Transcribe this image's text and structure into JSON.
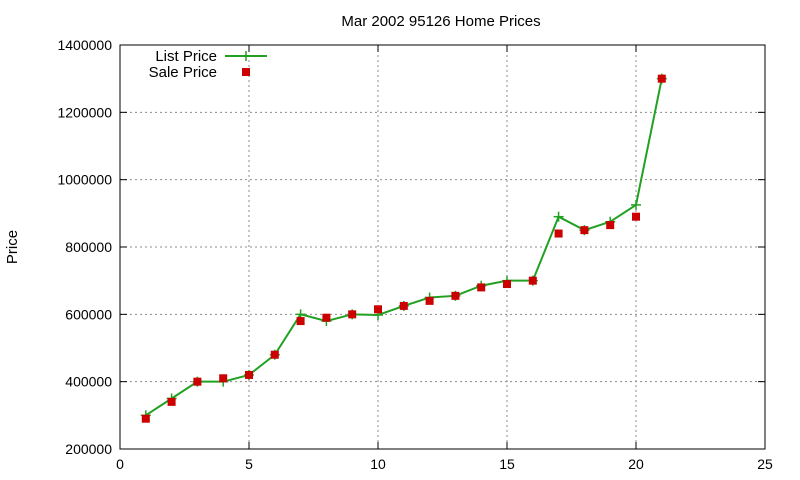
{
  "chart_data": {
    "type": "line",
    "title": "Mar 2002 95126 Home Prices",
    "xlabel": "",
    "ylabel": "Price",
    "xlim": [
      0,
      25
    ],
    "ylim": [
      200000,
      1400000
    ],
    "xticks": [
      0,
      5,
      10,
      15,
      20,
      25
    ],
    "yticks": [
      200000,
      400000,
      600000,
      800000,
      1000000,
      1200000,
      1400000
    ],
    "grid": true,
    "legend": "top-left",
    "series": [
      {
        "name": "List Price",
        "style": "line-plus",
        "color": "#22a022",
        "x": [
          1,
          2,
          3,
          4,
          5,
          6,
          7,
          8,
          9,
          10,
          11,
          12,
          13,
          14,
          15,
          16,
          17,
          18,
          19,
          20,
          21
        ],
        "y": [
          300000,
          350000,
          400000,
          400000,
          420000,
          480000,
          600000,
          580000,
          600000,
          598000,
          625000,
          650000,
          655000,
          685000,
          700000,
          700000,
          890000,
          850000,
          875000,
          925000,
          1300000
        ]
      },
      {
        "name": "Sale Price",
        "style": "square",
        "color": "#cc0000",
        "x": [
          1,
          2,
          3,
          4,
          5,
          6,
          7,
          8,
          9,
          10,
          11,
          12,
          13,
          14,
          15,
          16,
          17,
          18,
          19,
          20,
          21
        ],
        "y": [
          290000,
          340000,
          400000,
          410000,
          420000,
          480000,
          580000,
          590000,
          600000,
          615000,
          625000,
          640000,
          655000,
          680000,
          690000,
          700000,
          840000,
          850000,
          865000,
          890000,
          1300000
        ]
      }
    ]
  }
}
